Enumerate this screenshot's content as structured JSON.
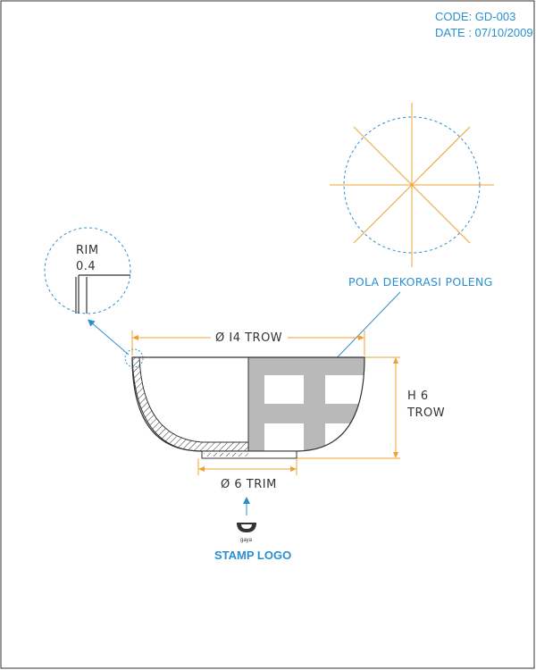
{
  "header": {
    "code": "CODE: GD-003",
    "date": "DATE : 07/10/2009"
  },
  "callouts": {
    "rim_label": "RIM",
    "rim_value": "0.4",
    "pattern_label": "POLA DEKORASI POLENG",
    "stamp_label": "STAMP LOGO",
    "stamp_brand": "gaya"
  },
  "dimensions": {
    "top_diameter": "Ø I4 TROW",
    "height_line1": "H 6",
    "height_line2": "TROW",
    "base_diameter": "Ø 6 TRIM"
  },
  "colors": {
    "dimension_line": "#f0a030",
    "accent_blue": "#2a8fd0",
    "pattern_grey": "#b9b9b9",
    "outline": "#333333"
  }
}
